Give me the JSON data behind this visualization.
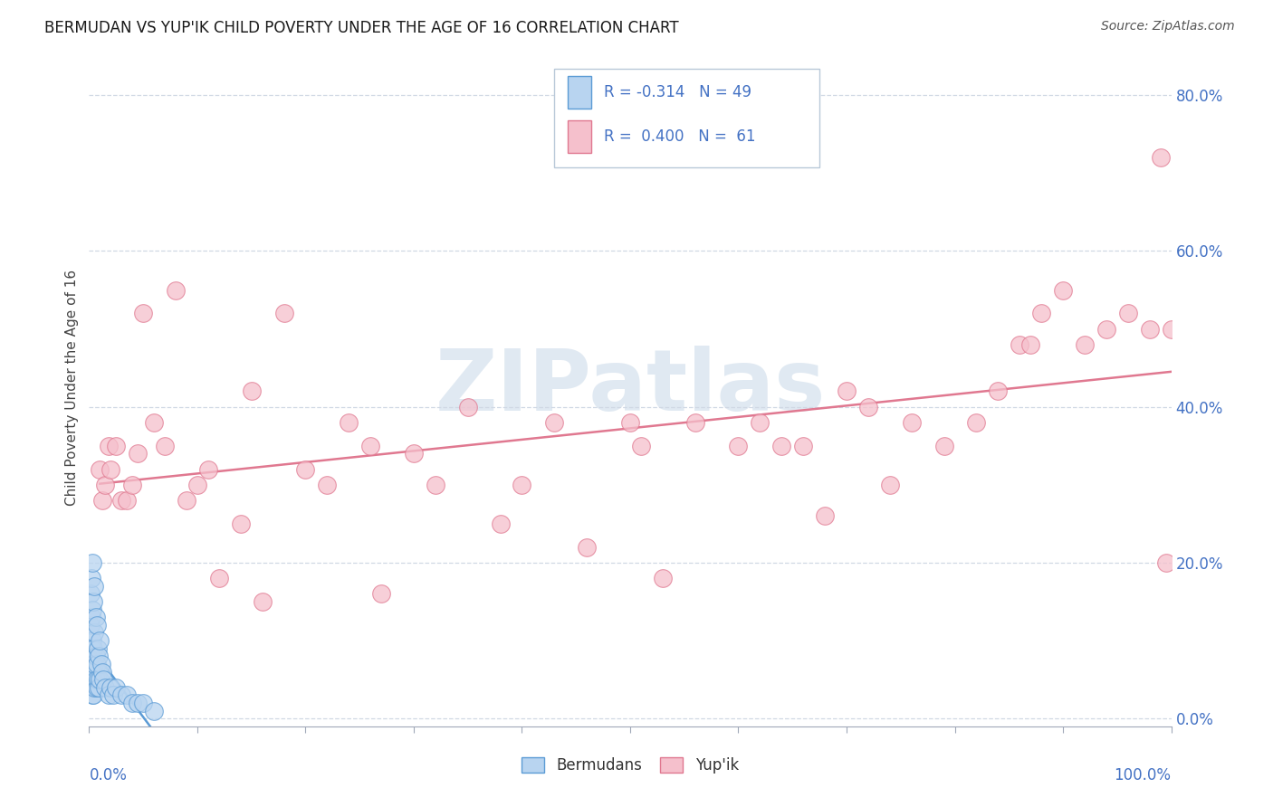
{
  "title": "BERMUDAN VS YUP'IK CHILD POVERTY UNDER THE AGE OF 16 CORRELATION CHART",
  "source": "Source: ZipAtlas.com",
  "ylabel": "Child Poverty Under the Age of 16",
  "xlim": [
    0.0,
    1.0
  ],
  "ylim": [
    -0.01,
    0.86
  ],
  "yticks": [
    0.0,
    0.2,
    0.4,
    0.6,
    0.8
  ],
  "ytick_labels": [
    "0.0%",
    "20.0%",
    "40.0%",
    "60.0%",
    "80.0%"
  ],
  "watermark": "ZIPatlas",
  "bermudan_color": "#b8d4f0",
  "bermudan_edge": "#5b9bd5",
  "yupik_color": "#f5c0cc",
  "yupik_edge": "#e07890",
  "trend_bermudan": "#5b9bd5",
  "trend_yupik": "#e07890",
  "grid_color": "#d0d8e4",
  "legend_text_color": "#4472c4",
  "title_color": "#1a1a1a",
  "source_color": "#555555",
  "ytick_color": "#4472c4",
  "bermudan_x": [
    0.001,
    0.001,
    0.001,
    0.001,
    0.002,
    0.002,
    0.002,
    0.002,
    0.002,
    0.003,
    0.003,
    0.003,
    0.003,
    0.003,
    0.003,
    0.004,
    0.004,
    0.004,
    0.004,
    0.005,
    0.005,
    0.005,
    0.005,
    0.006,
    0.006,
    0.006,
    0.007,
    0.007,
    0.007,
    0.008,
    0.008,
    0.009,
    0.009,
    0.01,
    0.01,
    0.011,
    0.012,
    0.013,
    0.015,
    0.018,
    0.02,
    0.022,
    0.025,
    0.03,
    0.035,
    0.04,
    0.045,
    0.05,
    0.06
  ],
  "bermudan_y": [
    0.05,
    0.08,
    0.12,
    0.16,
    0.04,
    0.06,
    0.09,
    0.13,
    0.18,
    0.03,
    0.05,
    0.07,
    0.1,
    0.14,
    0.2,
    0.03,
    0.06,
    0.09,
    0.15,
    0.04,
    0.07,
    0.11,
    0.17,
    0.05,
    0.08,
    0.13,
    0.04,
    0.07,
    0.12,
    0.05,
    0.09,
    0.04,
    0.08,
    0.05,
    0.1,
    0.07,
    0.06,
    0.05,
    0.04,
    0.03,
    0.04,
    0.03,
    0.04,
    0.03,
    0.03,
    0.02,
    0.02,
    0.02,
    0.01
  ],
  "yupik_x": [
    0.01,
    0.012,
    0.015,
    0.018,
    0.02,
    0.025,
    0.03,
    0.035,
    0.04,
    0.045,
    0.05,
    0.06,
    0.07,
    0.08,
    0.09,
    0.1,
    0.11,
    0.12,
    0.14,
    0.15,
    0.16,
    0.18,
    0.2,
    0.22,
    0.24,
    0.26,
    0.27,
    0.3,
    0.32,
    0.35,
    0.38,
    0.4,
    0.43,
    0.46,
    0.5,
    0.51,
    0.53,
    0.56,
    0.6,
    0.62,
    0.64,
    0.66,
    0.68,
    0.7,
    0.72,
    0.74,
    0.76,
    0.79,
    0.82,
    0.84,
    0.86,
    0.87,
    0.88,
    0.9,
    0.92,
    0.94,
    0.96,
    0.98,
    0.99,
    0.995,
    1.0
  ],
  "yupik_y": [
    0.32,
    0.28,
    0.3,
    0.35,
    0.32,
    0.35,
    0.28,
    0.28,
    0.3,
    0.34,
    0.52,
    0.38,
    0.35,
    0.55,
    0.28,
    0.3,
    0.32,
    0.18,
    0.25,
    0.42,
    0.15,
    0.52,
    0.32,
    0.3,
    0.38,
    0.35,
    0.16,
    0.34,
    0.3,
    0.4,
    0.25,
    0.3,
    0.38,
    0.22,
    0.38,
    0.35,
    0.18,
    0.38,
    0.35,
    0.38,
    0.35,
    0.35,
    0.26,
    0.42,
    0.4,
    0.3,
    0.38,
    0.35,
    0.38,
    0.42,
    0.48,
    0.48,
    0.52,
    0.55,
    0.48,
    0.5,
    0.52,
    0.5,
    0.72,
    0.2,
    0.5
  ]
}
